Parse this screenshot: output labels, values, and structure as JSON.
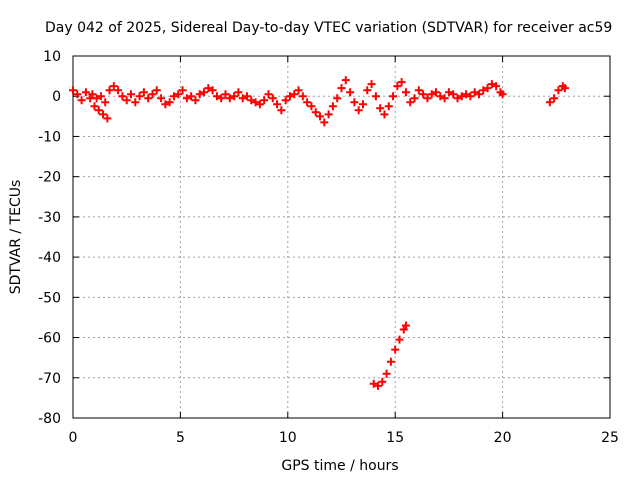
{
  "chart_data": {
    "type": "scatter",
    "title": "Day 042 of 2025, Sidereal Day-to-day VTEC variation (SDTVAR) for receiver ac59",
    "xlabel": "GPS time / hours",
    "ylabel": "SDTVAR / TECUs",
    "xlim": [
      0,
      25
    ],
    "ylim": [
      -80,
      10
    ],
    "xticks": [
      "0",
      "5",
      "10",
      "15",
      "20",
      "25"
    ],
    "yticks": [
      "10",
      "0",
      "-10",
      "-20",
      "-30",
      "-40",
      "-50",
      "-60",
      "-70",
      "-80"
    ],
    "grid": true,
    "legend": "none",
    "series": [
      {
        "name": "SDTVAR",
        "color": "#ff0000",
        "marker": "plus",
        "points": [
          [
            0.0,
            1.5
          ],
          [
            0.2,
            0.5
          ],
          [
            0.4,
            -1.0
          ],
          [
            0.6,
            1.0
          ],
          [
            0.8,
            -0.5
          ],
          [
            1.0,
            -2.5
          ],
          [
            1.2,
            -3.5
          ],
          [
            1.4,
            -4.5
          ],
          [
            1.6,
            -5.5
          ],
          [
            0.9,
            0.5
          ],
          [
            1.1,
            -0.5
          ],
          [
            1.3,
            0.0
          ],
          [
            1.5,
            -1.5
          ],
          [
            1.7,
            1.5
          ],
          [
            1.9,
            2.5
          ],
          [
            2.1,
            1.5
          ],
          [
            2.3,
            0.0
          ],
          [
            2.5,
            -1.0
          ],
          [
            2.7,
            0.5
          ],
          [
            2.9,
            -1.5
          ],
          [
            3.1,
            0.0
          ],
          [
            3.3,
            1.0
          ],
          [
            3.5,
            -0.5
          ],
          [
            3.7,
            0.5
          ],
          [
            3.9,
            1.5
          ],
          [
            4.1,
            -0.5
          ],
          [
            4.3,
            -2.0
          ],
          [
            4.5,
            -1.5
          ],
          [
            4.7,
            0.0
          ],
          [
            4.9,
            0.5
          ],
          [
            5.1,
            1.5
          ],
          [
            5.3,
            -0.5
          ],
          [
            5.5,
            0.0
          ],
          [
            5.7,
            -1.0
          ],
          [
            5.9,
            0.5
          ],
          [
            6.1,
            1.0
          ],
          [
            6.3,
            2.0
          ],
          [
            6.5,
            1.5
          ],
          [
            6.7,
            0.0
          ],
          [
            6.9,
            -0.5
          ],
          [
            7.1,
            0.5
          ],
          [
            7.3,
            -0.5
          ],
          [
            7.5,
            0.0
          ],
          [
            7.7,
            1.0
          ],
          [
            7.9,
            -0.5
          ],
          [
            8.1,
            0.0
          ],
          [
            8.3,
            -1.0
          ],
          [
            8.5,
            -1.5
          ],
          [
            8.7,
            -2.0
          ],
          [
            8.9,
            -1.0
          ],
          [
            9.1,
            0.5
          ],
          [
            9.3,
            -0.5
          ],
          [
            9.5,
            -2.0
          ],
          [
            9.7,
            -3.5
          ],
          [
            9.9,
            -1.0
          ],
          [
            10.1,
            0.0
          ],
          [
            10.3,
            0.5
          ],
          [
            10.5,
            1.5
          ],
          [
            10.7,
            0.0
          ],
          [
            10.9,
            -1.5
          ],
          [
            11.1,
            -2.5
          ],
          [
            11.3,
            -4.0
          ],
          [
            11.5,
            -5.0
          ],
          [
            11.7,
            -6.5
          ],
          [
            11.9,
            -4.5
          ],
          [
            12.1,
            -2.5
          ],
          [
            12.3,
            -0.5
          ],
          [
            12.5,
            2.0
          ],
          [
            12.7,
            4.0
          ],
          [
            12.9,
            1.0
          ],
          [
            13.1,
            -1.5
          ],
          [
            13.3,
            -3.5
          ],
          [
            13.5,
            -2.0
          ],
          [
            13.7,
            1.5
          ],
          [
            13.9,
            3.0
          ],
          [
            14.1,
            0.0
          ],
          [
            14.3,
            -3.0
          ],
          [
            14.5,
            -4.5
          ],
          [
            14.7,
            -2.5
          ],
          [
            14.9,
            0.0
          ],
          [
            15.1,
            2.5
          ],
          [
            15.3,
            3.5
          ],
          [
            15.5,
            1.0
          ],
          [
            15.7,
            -1.5
          ],
          [
            15.9,
            -0.5
          ],
          [
            16.1,
            1.5
          ],
          [
            16.3,
            0.5
          ],
          [
            16.5,
            -0.5
          ],
          [
            16.7,
            0.5
          ],
          [
            16.9,
            1.0
          ],
          [
            17.1,
            0.0
          ],
          [
            17.3,
            -0.5
          ],
          [
            17.5,
            1.0
          ],
          [
            17.7,
            0.5
          ],
          [
            17.9,
            -0.5
          ],
          [
            18.1,
            0.0
          ],
          [
            18.3,
            0.5
          ],
          [
            18.5,
            0.0
          ],
          [
            18.7,
            1.0
          ],
          [
            18.9,
            0.5
          ],
          [
            19.1,
            1.5
          ],
          [
            19.3,
            2.0
          ],
          [
            19.5,
            3.0
          ],
          [
            19.7,
            2.5
          ],
          [
            19.9,
            1.0
          ],
          [
            20.0,
            0.5
          ],
          [
            22.2,
            -1.5
          ],
          [
            22.4,
            -0.5
          ],
          [
            22.6,
            1.5
          ],
          [
            22.8,
            2.5
          ],
          [
            22.9,
            2.0
          ],
          [
            14.0,
            -71.5
          ],
          [
            14.2,
            -72.0
          ],
          [
            14.4,
            -71.0
          ],
          [
            14.6,
            -69.0
          ],
          [
            14.8,
            -66.0
          ],
          [
            15.0,
            -63.0
          ],
          [
            15.2,
            -60.5
          ],
          [
            15.4,
            -58.0
          ],
          [
            15.5,
            -57.0
          ]
        ]
      }
    ]
  }
}
